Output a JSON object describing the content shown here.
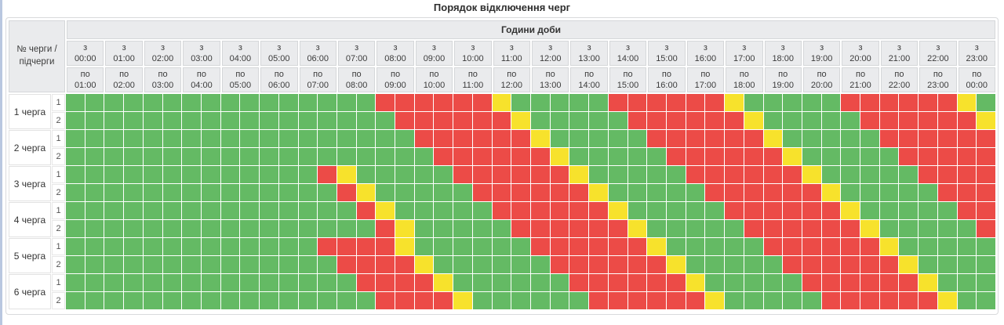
{
  "title": "Порядок відключення черг",
  "header": {
    "corner_label": "№ черги / підчерги",
    "hours_label": "Години доби",
    "from_prefix": "з",
    "to_prefix": "по",
    "hours": [
      {
        "from": "00:00",
        "to": "01:00"
      },
      {
        "from": "01:00",
        "to": "02:00"
      },
      {
        "from": "02:00",
        "to": "03:00"
      },
      {
        "from": "03:00",
        "to": "04:00"
      },
      {
        "from": "04:00",
        "to": "05:00"
      },
      {
        "from": "05:00",
        "to": "06:00"
      },
      {
        "from": "06:00",
        "to": "07:00"
      },
      {
        "from": "07:00",
        "to": "08:00"
      },
      {
        "from": "08:00",
        "to": "09:00"
      },
      {
        "from": "09:00",
        "to": "10:00"
      },
      {
        "from": "10:00",
        "to": "11:00"
      },
      {
        "from": "11:00",
        "to": "12:00"
      },
      {
        "from": "12:00",
        "to": "13:00"
      },
      {
        "from": "13:00",
        "to": "14:00"
      },
      {
        "from": "14:00",
        "to": "15:00"
      },
      {
        "from": "15:00",
        "to": "16:00"
      },
      {
        "from": "16:00",
        "to": "17:00"
      },
      {
        "from": "17:00",
        "to": "18:00"
      },
      {
        "from": "18:00",
        "to": "19:00"
      },
      {
        "from": "19:00",
        "to": "20:00"
      },
      {
        "from": "20:00",
        "to": "21:00"
      },
      {
        "from": "21:00",
        "to": "22:00"
      },
      {
        "from": "22:00",
        "to": "23:00"
      },
      {
        "from": "23:00",
        "to": "00:00"
      }
    ]
  },
  "queues": [
    {
      "label": "1 черга",
      "subs": [
        "1",
        "2"
      ]
    },
    {
      "label": "2 черга",
      "subs": [
        "1",
        "2"
      ]
    },
    {
      "label": "3 черга",
      "subs": [
        "1",
        "2"
      ]
    },
    {
      "label": "4 черга",
      "subs": [
        "1",
        "2"
      ]
    },
    {
      "label": "5 черга",
      "subs": [
        "1",
        "2"
      ]
    },
    {
      "label": "6 черга",
      "subs": [
        "1",
        "2"
      ]
    }
  ],
  "colors": {
    "G": "#64ba64",
    "R": "#ec4b47",
    "Y": "#f7e22c"
  },
  "legend_meaning": {
    "G": "power-on",
    "R": "outage",
    "Y": "possible-outage"
  },
  "chart_data": {
    "type": "heatmap",
    "title": "Порядок відключення черг",
    "x_axis_label": "Години доби",
    "x_labels": [
      "00:00-01:00",
      "01:00-02:00",
      "02:00-03:00",
      "03:00-04:00",
      "04:00-05:00",
      "05:00-06:00",
      "06:00-07:00",
      "07:00-08:00",
      "08:00-09:00",
      "09:00-10:00",
      "10:00-11:00",
      "11:00-12:00",
      "12:00-13:00",
      "13:00-14:00",
      "14:00-15:00",
      "15:00-16:00",
      "16:00-17:00",
      "17:00-18:00",
      "18:00-19:00",
      "19:00-20:00",
      "20:00-21:00",
      "21:00-22:00",
      "22:00-23:00",
      "23:00-00:00"
    ],
    "row_labels": [
      "1 черга / 1",
      "1 черга / 2",
      "2 черга / 1",
      "2 черга / 2",
      "3 черга / 1",
      "3 черга / 2",
      "4 черга / 1",
      "4 черга / 2",
      "5 черга / 1",
      "5 черга / 2",
      "6 черга / 1",
      "6 черга / 2"
    ],
    "cell_resolution_minutes": 30,
    "cells_per_row": 48,
    "values": [
      "GGGGGGGGGGGGGGGGRRRRRRYGGGGGRRRRRRYGGGGGRRRRRRYG",
      "GGGGGGGGGGGGGGGGGRRRRRRYGGGGGRRRRRRYGGGGGRRRRRRY",
      "GGGGGGGGGGGGGGGGGGRRRRRRYGGGGGRRRRRRYGGGGGRRRRRR",
      "GGGGGGGGGGGGGGGGGGGRRRRRRYGGGGGRRRRRRYGGGGGRRRRR",
      "GGGGGGGGGGGGGRYGGGGGRRRRRRYGGGGGRRRRRRYGGGGGRRRR",
      "GGGGGGGGGGGGGGRYGGGGGRRRRRRYGGGGGRRRRRRYGGGGGRRR",
      "GGGGGGGGGGGGGGGRYGGGGGRRRRRRYGGGGGRRRRRRYGGGGGRR",
      "GGGGGGGGGGGGGGGGRYGGGGGRRRRRRYGGGGGRRRRRRYGGGGGR",
      "GGGGGGGGGGGGGRRRRYGGGGGGRRRRRRYGGGGGRRRRRRYGGGGG",
      "GGGGGGGGGGGGGGRRRRYGGGGGGRRRRRRYGGGGGRRRRRRYGGGG",
      "GGGGGGGGGGGGGGGRRRRYGGGGGGRRRRRRYGGGGGRRRRRRYGGG",
      "GGGGGGGGGGGGGGGGRRRRYGGGGGGRRRRRRYGGGGGRRRRRRYGG"
    ]
  }
}
